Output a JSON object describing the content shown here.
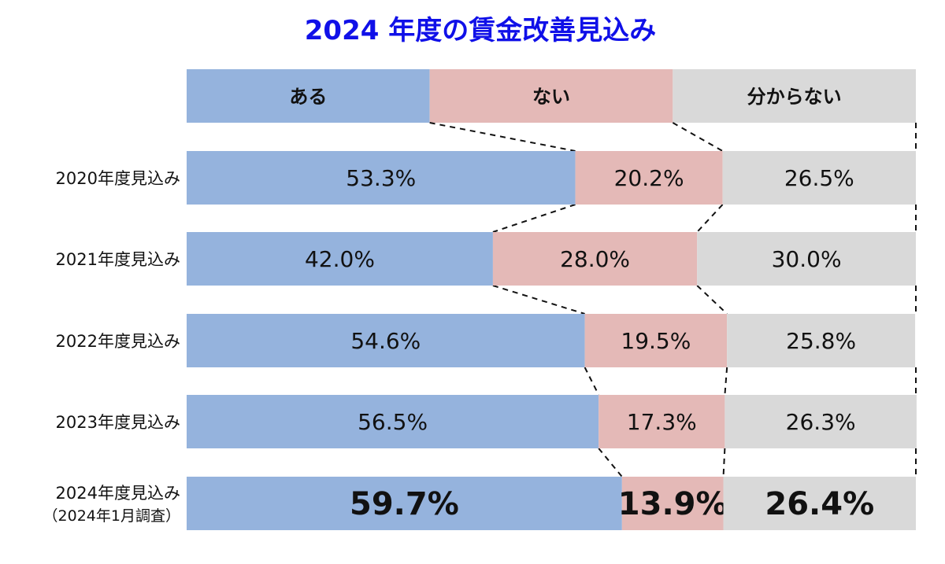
{
  "chart_data": {
    "type": "bar",
    "stacked": true,
    "orientation": "horizontal",
    "normalized": true,
    "title": "2024 年度の賃金改善見込み",
    "title_color": "#1010e8",
    "legend_placement": "top",
    "categories": [
      [
        "2020年度見込み"
      ],
      [
        "2021年度見込み"
      ],
      [
        "2022年度見込み"
      ],
      [
        "2023年度見込み"
      ],
      [
        "2024年度見込み",
        "（2024年1月調査）"
      ]
    ],
    "series": [
      {
        "name": "ある",
        "color": "#95b3dd",
        "values": [
          53.3,
          42.0,
          54.6,
          56.5,
          59.7
        ],
        "labels": [
          "53.3%",
          "42.0%",
          "54.6%",
          "56.5%",
          "59.7%"
        ]
      },
      {
        "name": "ない",
        "color": "#e4b9b7",
        "values": [
          20.2,
          28.0,
          19.5,
          17.3,
          13.9
        ],
        "labels": [
          "20.2%",
          "28.0%",
          "19.5%",
          "17.3%",
          "13.9%"
        ]
      },
      {
        "name": "分からない",
        "color": "#d9d9d9",
        "values": [
          26.5,
          30.0,
          25.8,
          26.3,
          26.4
        ],
        "labels": [
          "26.5%",
          "30.0%",
          "25.8%",
          "26.3%",
          "26.4%"
        ]
      }
    ],
    "emphasized_category_index": 4,
    "connector_lines": "dashed",
    "xlim": [
      0,
      100
    ]
  }
}
